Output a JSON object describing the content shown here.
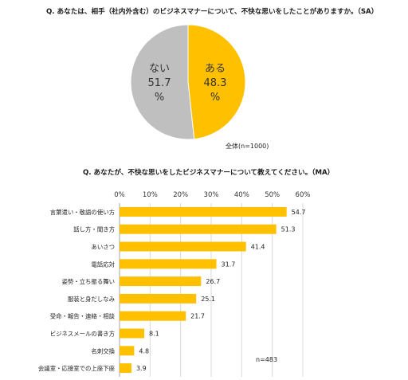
{
  "q1": {
    "title": "Q.  あなたは、相手（社内外含む）のビジネスマナーについて、不快な思いをしたことがありますか。（SA）",
    "note": "全体(n=1000)"
  },
  "q2": {
    "title": "Q.  あなたが、不快な思いをしたビジネスマナーについて教えてください。（MA）",
    "note": "n=483"
  },
  "colors": {
    "yes": "#FFC000",
    "no": "#BFBFBF",
    "bar": "#FFC000",
    "grid": "#D9D9D9"
  },
  "chart_data": [
    {
      "type": "pie",
      "slices": [
        {
          "name": "ある",
          "value": 48.3,
          "label_pct": "48.3",
          "unit": "%",
          "color": "#FFC000"
        },
        {
          "name": "ない",
          "value": 51.7,
          "label_pct": "51.7",
          "unit": "%",
          "color": "#BFBFBF"
        }
      ]
    },
    {
      "type": "bar",
      "orientation": "horizontal",
      "xlim": [
        0,
        60
      ],
      "tick_values": [
        0,
        10,
        20,
        30,
        40,
        50,
        60
      ],
      "tick_labels": [
        "0%",
        "10%",
        "20%",
        "30%",
        "40%",
        "50%",
        "60%"
      ],
      "grid": true,
      "categories": [
        "言葉遣い・敬語の使い方",
        "話し方・聞き方",
        "あいさつ",
        "電話応対",
        "姿勢・立ち振る舞い",
        "服装と身だしなみ",
        "受命・報告・連絡・相談",
        "ビジネスメールの書き方",
        "名刺交換",
        "会議室・応接室での上座下座"
      ],
      "values": [
        54.7,
        51.3,
        41.4,
        31.7,
        26.7,
        25.1,
        21.7,
        8.1,
        4.8,
        3.9
      ],
      "value_labels": [
        "54.7",
        "51.3",
        "41.4",
        "31.7",
        "26.7",
        "25.1",
        "21.7",
        "8.1",
        "4.8",
        "3.9"
      ]
    }
  ]
}
